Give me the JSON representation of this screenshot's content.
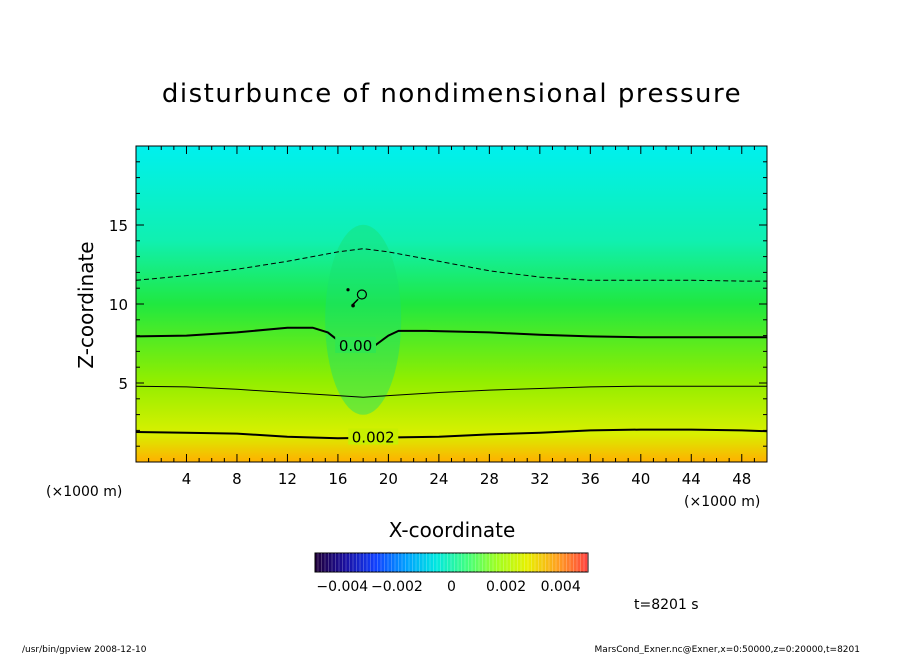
{
  "chart_data": {
    "type": "heatmap",
    "title": "disturbunce of nondimensional pressure",
    "xlabel": "X-coordinate",
    "ylabel": "Z-coordinate",
    "x_unit_left": "(×1000 m)",
    "x_unit_right": "(×1000 m)",
    "xlim": [
      0,
      50
    ],
    "ylim": [
      0,
      20
    ],
    "x_ticks": [
      4,
      8,
      12,
      16,
      20,
      24,
      28,
      32,
      36,
      40,
      44,
      48
    ],
    "y_ticks": [
      5,
      10,
      15
    ],
    "colorbar": {
      "range": [
        -0.005,
        0.005
      ],
      "tick_values": [
        -0.004,
        -0.002,
        0,
        0.002,
        0.004
      ],
      "tick_labels": [
        "−0.004",
        "−0.002",
        "0",
        "0.002",
        "0.004"
      ],
      "colors": [
        "#20003a",
        "#1a0fa0",
        "#1040ff",
        "#00a0ff",
        "#00e8e0",
        "#40ff80",
        "#a0ff20",
        "#e8f000",
        "#ffa020",
        "#ff4040"
      ]
    },
    "field_colors": {
      "top": "#00f0ee",
      "upper": "#10f0b0",
      "mid": "#20e840",
      "lower": "#90ee00",
      "near_surface": "#d8f000",
      "surface": "#ffb000"
    },
    "contours": [
      {
        "level": 0.002,
        "label": "0.002",
        "style": "solid-thick",
        "points": [
          [
            0,
            1.9
          ],
          [
            4,
            1.85
          ],
          [
            8,
            1.8
          ],
          [
            12,
            1.6
          ],
          [
            16,
            1.5
          ],
          [
            20,
            1.55
          ],
          [
            24,
            1.6
          ],
          [
            28,
            1.75
          ],
          [
            32,
            1.85
          ],
          [
            36,
            2.0
          ],
          [
            40,
            2.05
          ],
          [
            44,
            2.05
          ],
          [
            48,
            2.0
          ],
          [
            50,
            1.95
          ]
        ]
      },
      {
        "level": 0.001,
        "label": "",
        "style": "solid-thin",
        "points": [
          [
            0,
            4.8
          ],
          [
            4,
            4.75
          ],
          [
            8,
            4.6
          ],
          [
            12,
            4.4
          ],
          [
            16,
            4.2
          ],
          [
            18,
            4.1
          ],
          [
            20,
            4.2
          ],
          [
            24,
            4.4
          ],
          [
            28,
            4.55
          ],
          [
            32,
            4.65
          ],
          [
            36,
            4.75
          ],
          [
            40,
            4.8
          ],
          [
            44,
            4.8
          ],
          [
            48,
            4.8
          ],
          [
            50,
            4.8
          ]
        ]
      },
      {
        "level": 0.0,
        "label": "0.00",
        "style": "solid-thick",
        "points": [
          [
            0,
            7.95
          ],
          [
            4,
            8.0
          ],
          [
            8,
            8.2
          ],
          [
            12,
            8.5
          ],
          [
            14,
            8.5
          ],
          [
            15.2,
            8.2
          ],
          [
            16,
            7.7
          ],
          [
            17.5,
            7.3
          ],
          [
            18.8,
            7.3
          ],
          [
            20,
            8.0
          ],
          [
            20.8,
            8.3
          ],
          [
            23,
            8.3
          ],
          [
            28,
            8.2
          ],
          [
            32,
            8.05
          ],
          [
            36,
            7.95
          ],
          [
            40,
            7.9
          ],
          [
            44,
            7.9
          ],
          [
            48,
            7.9
          ],
          [
            50,
            7.9
          ]
        ]
      },
      {
        "level": -0.001,
        "label": "",
        "style": "dashed",
        "points": [
          [
            0,
            11.5
          ],
          [
            4,
            11.8
          ],
          [
            8,
            12.2
          ],
          [
            12,
            12.7
          ],
          [
            16,
            13.3
          ],
          [
            18,
            13.5
          ],
          [
            20,
            13.3
          ],
          [
            24,
            12.7
          ],
          [
            28,
            12.1
          ],
          [
            32,
            11.7
          ],
          [
            36,
            11.5
          ],
          [
            40,
            11.5
          ],
          [
            44,
            11.5
          ],
          [
            48,
            11.45
          ],
          [
            50,
            11.45
          ]
        ]
      }
    ],
    "time_label": "t=8201 s",
    "footer_left": "/usr/bin/gpview   2008-12-10",
    "footer_right": "MarsCond_Exner.nc@Exner,x=0:50000,z=0:20000,t=8201"
  }
}
